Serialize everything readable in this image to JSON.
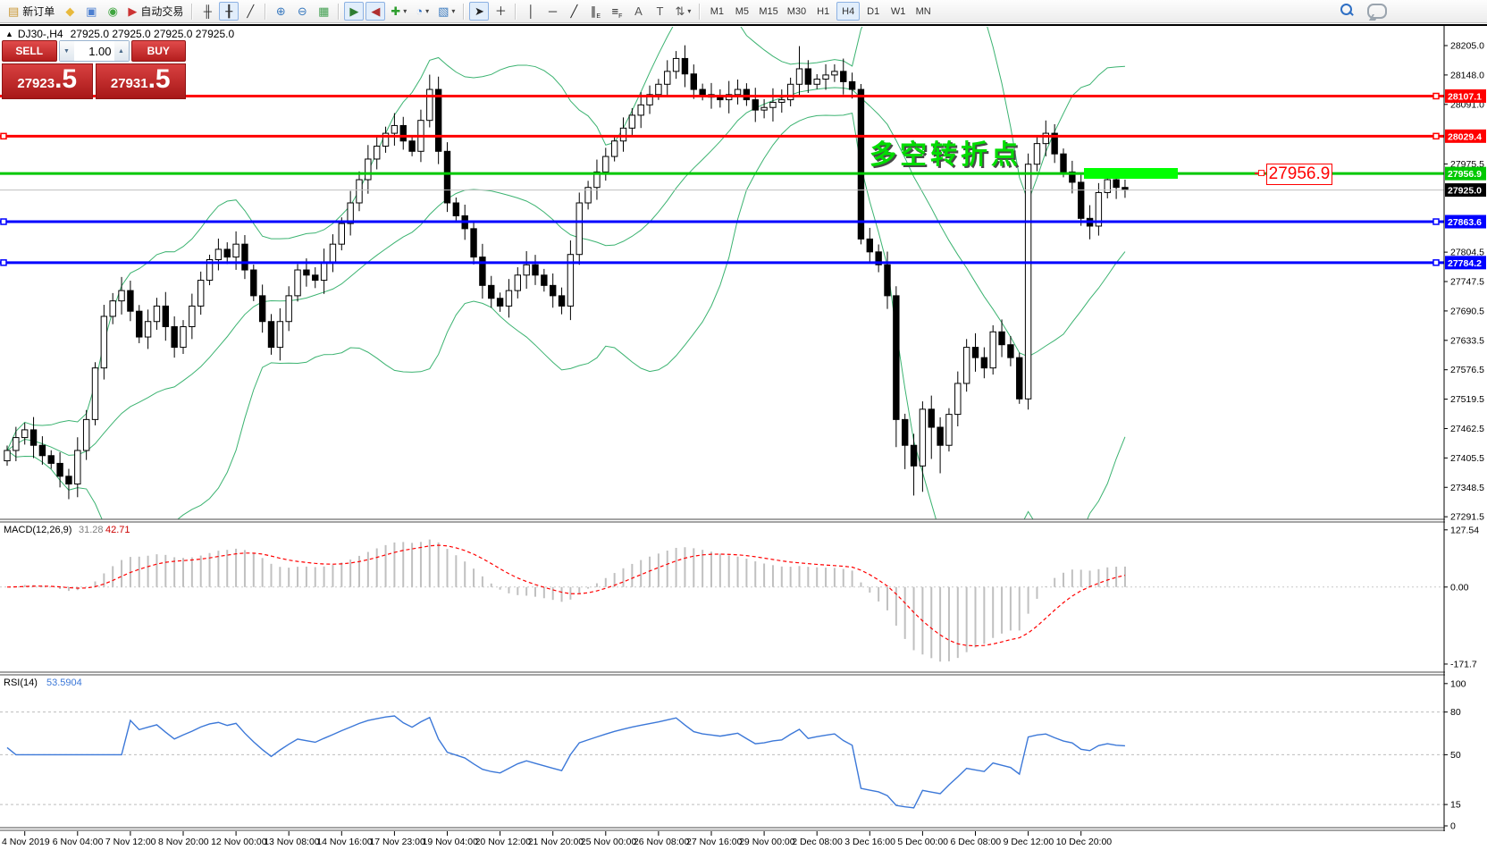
{
  "toolbar": {
    "items": [
      {
        "type": "button",
        "name": "new-order-button",
        "icon": "new-order-icon",
        "glyph": "▤",
        "glyph_color": "#c89632",
        "label": "新订单",
        "active": false
      },
      {
        "type": "button",
        "name": "symbols-button",
        "icon": "gold-diamond-icon",
        "glyph": "◆",
        "glyph_color": "#e8b93c",
        "active": false
      },
      {
        "type": "button",
        "name": "market-watch-button",
        "icon": "market-watch-icon",
        "glyph": "▣",
        "glyph_color": "#4c7fd0",
        "active": false
      },
      {
        "type": "button",
        "name": "navigator-button",
        "icon": "navigator-icon",
        "glyph": "◉",
        "glyph_color": "#3fa53f",
        "active": false
      },
      {
        "type": "button",
        "name": "autotrading-button",
        "icon": "autotrading-icon",
        "glyph": "▶",
        "glyph_color": "#cc3333",
        "label": "自动交易",
        "active": false
      },
      {
        "type": "separator"
      },
      {
        "type": "button",
        "name": "bar-chart-button",
        "icon": "bar-chart-icon",
        "glyph": "╫",
        "glyph_color": "#333333",
        "active": false
      },
      {
        "type": "button",
        "name": "candlestick-chart-button",
        "icon": "candlestick-icon",
        "glyph": "╂",
        "glyph_color": "#333333",
        "active": true
      },
      {
        "type": "button",
        "name": "line-chart-button",
        "icon": "line-chart-icon",
        "glyph": "╱",
        "glyph_color": "#333333",
        "active": false
      },
      {
        "type": "separator"
      },
      {
        "type": "button",
        "name": "zoom-in-button",
        "icon": "zoom-in-icon",
        "glyph": "⊕",
        "glyph_color": "#3a7abf",
        "active": false
      },
      {
        "type": "button",
        "name": "zoom-out-button",
        "icon": "zoom-out-icon",
        "glyph": "⊖",
        "glyph_color": "#3a7abf",
        "active": false
      },
      {
        "type": "button",
        "name": "tile-windows-button",
        "icon": "tile-windows-icon",
        "glyph": "▦",
        "glyph_color": "#3f9e4e",
        "active": false
      },
      {
        "type": "separator"
      },
      {
        "type": "button",
        "name": "auto-scroll-button",
        "icon": "auto-scroll-icon",
        "glyph": "▶",
        "glyph_color": "#2e7d32",
        "active": true
      },
      {
        "type": "button",
        "name": "chart-shift-button",
        "icon": "chart-shift-icon",
        "glyph": "◀",
        "glyph_color": "#b03030",
        "active": true
      },
      {
        "type": "button",
        "name": "indicators-button",
        "icon": "indicators-plus-icon",
        "glyph": "✚",
        "glyph_color": "#2e9e2e",
        "dropdown": true,
        "active": false
      },
      {
        "type": "button",
        "name": "periods-button",
        "icon": "clock-icon",
        "glyph": "◔",
        "glyph_color": "#2e6fc4",
        "dropdown": true,
        "active": false
      },
      {
        "type": "button",
        "name": "templates-button",
        "icon": "template-chart-icon",
        "glyph": "▧",
        "glyph_color": "#3a7abf",
        "dropdown": true,
        "active": false
      },
      {
        "type": "separator"
      },
      {
        "type": "button",
        "name": "cursor-button",
        "icon": "cursor-arrow-icon",
        "glyph": "➤",
        "glyph_color": "#222222",
        "active": true
      },
      {
        "type": "button",
        "name": "crosshair-button",
        "icon": "crosshair-icon",
        "glyph": "＋",
        "glyph_color": "#222222",
        "active": false
      },
      {
        "type": "separator"
      },
      {
        "type": "button",
        "name": "vertical-line-button",
        "icon": "vertical-line-icon",
        "glyph": "│",
        "glyph_color": "#222222",
        "active": false
      },
      {
        "type": "button",
        "name": "horizontal-line-button",
        "icon": "horizontal-line-icon",
        "glyph": "─",
        "glyph_color": "#222222",
        "active": false
      },
      {
        "type": "button",
        "name": "trendline-button",
        "icon": "trendline-icon",
        "glyph": "╱",
        "glyph_color": "#222222",
        "active": false
      },
      {
        "type": "button",
        "name": "channel-button",
        "icon": "equidistant-channel-icon",
        "glyph": "∥",
        "glyph_color": "#222222",
        "sub": "E",
        "active": false
      },
      {
        "type": "button",
        "name": "fibonacci-button",
        "icon": "fibonacci-icon",
        "glyph": "≡",
        "glyph_color": "#222222",
        "sub": "F",
        "active": false
      },
      {
        "type": "button",
        "name": "text-button",
        "icon": "text-icon",
        "glyph": "A",
        "glyph_color": "#555555",
        "active": false
      },
      {
        "type": "button",
        "name": "text-label-button",
        "icon": "text-label-icon",
        "glyph": "T",
        "glyph_color": "#555555",
        "active": false
      },
      {
        "type": "button",
        "name": "arrows-button",
        "icon": "arrows-icon",
        "glyph": "⇅",
        "glyph_color": "#555555",
        "dropdown": true,
        "active": false
      },
      {
        "type": "separator"
      }
    ],
    "timeframes": [
      "M1",
      "M5",
      "M15",
      "M30",
      "H1",
      "H4",
      "D1",
      "W1",
      "MN"
    ],
    "active_timeframe": "H4"
  },
  "symbol_line": {
    "collapse_arrow": "▲",
    "title": "DJ30-,H4",
    "quotes": "27925.0 27925.0 27925.0 27925.0"
  },
  "trade_panel": {
    "sell_label": "SELL",
    "buy_label": "BUY",
    "volume": "1.00",
    "sell_price_main": "27923",
    "sell_price_pips": ".5",
    "buy_price_main": "27931",
    "buy_price_pips": ".5"
  },
  "chart_data": {
    "type": "candlestick",
    "symbol": "DJ30-",
    "timeframe": "H4",
    "title": "DJ30-,H4 27925.0 27925.0 27925.0 27925.0",
    "first_open": 27400,
    "closes": [
      27420,
      27445,
      27460,
      27430,
      27410,
      27395,
      27370,
      27355,
      27420,
      27480,
      27580,
      27680,
      27710,
      27730,
      27690,
      27640,
      27670,
      27700,
      27660,
      27620,
      27660,
      27700,
      27750,
      27790,
      27810,
      27795,
      27820,
      27770,
      27720,
      27670,
      27620,
      27670,
      27720,
      27770,
      27760,
      27750,
      27785,
      27820,
      27860,
      27900,
      27945,
      27985,
      28010,
      28035,
      28050,
      28020,
      28000,
      28060,
      28120,
      28000,
      27900,
      27875,
      27850,
      27795,
      27740,
      27715,
      27700,
      27730,
      27760,
      27780,
      27760,
      27740,
      27720,
      27700,
      27800,
      27900,
      27930,
      27960,
      27990,
      28020,
      28045,
      28070,
      28090,
      28110,
      28130,
      28155,
      28180,
      28150,
      28120,
      28110,
      28105,
      28100,
      28110,
      28120,
      28100,
      28080,
      28085,
      28095,
      28100,
      28130,
      28160,
      28130,
      28140,
      28148,
      28155,
      28135,
      28120,
      27830,
      27805,
      27780,
      27720,
      27480,
      27430,
      27390,
      27500,
      27465,
      27430,
      27490,
      27550,
      27620,
      27600,
      27580,
      27650,
      27625,
      27600,
      27520,
      27975,
      28015,
      28035,
      27995,
      27960,
      27940,
      27870,
      27855,
      27920,
      27945,
      27930,
      27925
    ],
    "y_axis_ticks": [
      28205.0,
      28148.0,
      28091.0,
      27975.5,
      27804.5,
      27747.5,
      27690.5,
      27633.5,
      27576.5,
      27519.5,
      27462.5,
      27405.5,
      27348.5,
      27291.5
    ],
    "x_axis_labels": [
      "4 Nov 2019",
      "6 Nov 04:00",
      "7 Nov 12:00",
      "8 Nov 20:00",
      "12 Nov 00:00",
      "13 Nov 08:00",
      "14 Nov 16:00",
      "17 Nov 23:00",
      "19 Nov 04:00",
      "20 Nov 12:00",
      "21 Nov 20:00",
      "25 Nov 00:00",
      "26 Nov 08:00",
      "27 Nov 16:00",
      "29 Nov 00:00",
      "2 Dec 08:00",
      "3 Dec 16:00",
      "5 Dec 00:00",
      "6 Dec 08:00",
      "9 Dec 12:00",
      "10 Dec 20:00"
    ],
    "horizontal_lines": [
      {
        "price": 28107.1,
        "label": "28107.1",
        "color": "#ff0000",
        "anchor_left": false,
        "anchor_right": true
      },
      {
        "price": 28029.4,
        "label": "28029.4",
        "color": "#ff0000",
        "anchor_left": true,
        "anchor_right": true
      },
      {
        "price": 27956.9,
        "label": "27956.9",
        "color": "#00c800",
        "anchor_left": false,
        "anchor_right": false
      },
      {
        "price": 27863.6,
        "label": "27863.6",
        "color": "#0000ff",
        "anchor_left": true,
        "anchor_right": true
      },
      {
        "price": 27784.2,
        "label": "27784.2",
        "color": "#0000ff",
        "anchor_left": true,
        "anchor_right": true
      }
    ],
    "current_price": {
      "value": 27925.0,
      "label": "27925.0",
      "line_color": "#c0c0c0",
      "label_bg": "#000000"
    },
    "annotation": {
      "text": "多空转折点",
      "color": "#00dd00"
    },
    "price_callout": {
      "text": "27956.9",
      "color": "#ff0000"
    },
    "bull_color": "#ffffff",
    "bear_color": "#000000",
    "indicators": {
      "bollinger": {
        "period": 20,
        "deviation": 2,
        "color": "#3cb371"
      },
      "macd": {
        "label": "MACD(12,26,9)",
        "fast": 12,
        "slow": 26,
        "signal": 9,
        "current_value": "31.28",
        "current_signal": "42.71",
        "axis_ticks": [
          "127.54",
          "0.00",
          "-171.7"
        ],
        "axis_max": 127.54,
        "axis_min": -171.7,
        "histogram_color": "#c0c0c0",
        "signal_color": "#ff0000"
      },
      "rsi": {
        "label": "RSI(14)",
        "period": 14,
        "current_value": "53.5904",
        "levels": [
          80,
          50,
          15
        ],
        "axis_max": 100,
        "axis_min": 0,
        "axis_tick_labels": [
          "100",
          "80",
          "50",
          "15",
          "0"
        ],
        "line_color": "#3c78d8",
        "level_color": "#bdbdbd"
      }
    }
  }
}
